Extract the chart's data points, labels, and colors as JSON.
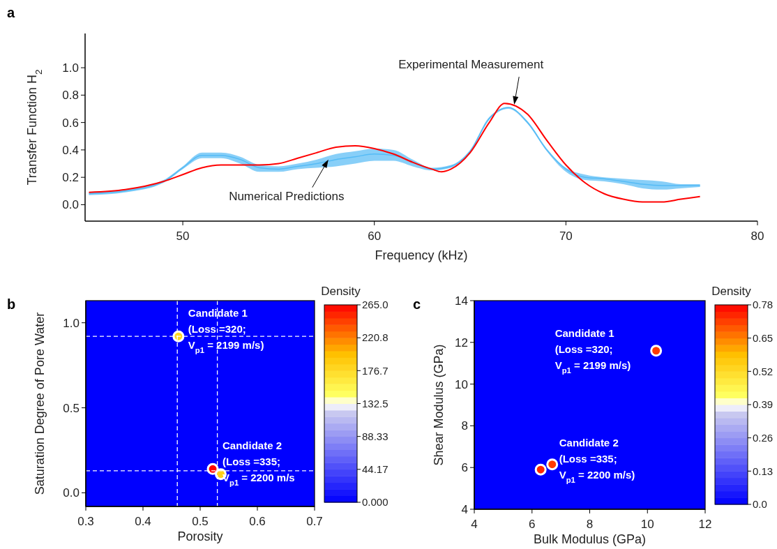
{
  "chart_data": [
    {
      "type": "line",
      "title": "a",
      "xlabel": "Frequency (kHz)",
      "ylabel": "Transfer Function H$_{2}$",
      "xlim": [
        44.9,
        80
      ],
      "xticks": [
        50,
        60,
        70,
        80
      ],
      "ylim": [
        -0.12,
        1.25
      ],
      "yticks": [
        {
          "value": 0,
          "label": "0.0"
        },
        {
          "value": 0.2,
          "label": "0.2"
        },
        {
          "value": 0.4,
          "label": "0.4"
        },
        {
          "value": 0.6,
          "label": "0.6"
        },
        {
          "value": 0.8,
          "label": "0.8"
        },
        {
          "value": 1,
          "label": "1.0"
        }
      ],
      "grid": false,
      "series": [
        {
          "color": "#55bbf5",
          "x": [
            45.1,
            47,
            49,
            50,
            51,
            52,
            53,
            54,
            55,
            56,
            57,
            58,
            59,
            60,
            61,
            62,
            63,
            64,
            65,
            66,
            67,
            68,
            69,
            70,
            71,
            72,
            73,
            74,
            75,
            76,
            77
          ],
          "values": [
            0.08,
            0.1,
            0.17,
            0.27,
            0.36,
            0.36,
            0.33,
            0.27,
            0.26,
            0.28,
            0.3,
            0.33,
            0.35,
            0.37,
            0.36,
            0.31,
            0.26,
            0.28,
            0.39,
            0.63,
            0.71,
            0.6,
            0.4,
            0.26,
            0.2,
            0.19,
            0.17,
            0.15,
            0.14,
            0.14,
            0.14
          ],
          "lower": [
            0.07,
            0.09,
            0.16,
            0.26,
            0.34,
            0.34,
            0.3,
            0.24,
            0.24,
            0.26,
            0.27,
            0.28,
            0.3,
            0.32,
            0.32,
            0.28,
            0.25,
            0.27,
            0.38,
            0.62,
            0.7,
            0.59,
            0.39,
            0.24,
            0.18,
            0.17,
            0.15,
            0.12,
            0.11,
            0.12,
            0.13
          ],
          "upper": [
            0.09,
            0.11,
            0.18,
            0.28,
            0.38,
            0.38,
            0.35,
            0.29,
            0.28,
            0.3,
            0.33,
            0.37,
            0.39,
            0.41,
            0.4,
            0.33,
            0.27,
            0.29,
            0.4,
            0.64,
            0.71,
            0.61,
            0.41,
            0.27,
            0.22,
            0.2,
            0.19,
            0.18,
            0.17,
            0.15,
            0.15
          ]
        },
        {
          "type": "line",
          "color": "#ff0000",
          "x": [
            45.1,
            47,
            49,
            50,
            51,
            52,
            54,
            55,
            56,
            57,
            58,
            59,
            60,
            61,
            62,
            63,
            63.5,
            64,
            65,
            66,
            66.8,
            68,
            69,
            70,
            71,
            72,
            73,
            74,
            75,
            76,
            77
          ],
          "values": [
            0.09,
            0.11,
            0.17,
            0.22,
            0.27,
            0.29,
            0.29,
            0.3,
            0.34,
            0.38,
            0.42,
            0.43,
            0.41,
            0.37,
            0.31,
            0.26,
            0.24,
            0.26,
            0.38,
            0.6,
            0.74,
            0.66,
            0.47,
            0.29,
            0.16,
            0.08,
            0.04,
            0.02,
            0.02,
            0.04,
            0.06
          ]
        }
      ],
      "annotations": [
        {
          "text": "Experimental Measurement",
          "x": 67.3,
          "y": 0.73
        },
        {
          "text": "Numerical Predictions",
          "x": 57.6,
          "y": 0.33
        }
      ]
    },
    {
      "type": "scatter",
      "title": "b",
      "xlabel": "Porosity",
      "ylabel": "Saturation Degree of Pore Water",
      "clabel": "Density",
      "xlim": [
        0.3,
        0.7
      ],
      "xticks": [
        0.3,
        0.4,
        0.5,
        0.6,
        0.7
      ],
      "ylim": [
        -0.08,
        1.13
      ],
      "yticks": [
        {
          "value": 0,
          "label": "0.0"
        },
        {
          "value": 0.5,
          "label": "0.5"
        },
        {
          "value": 1,
          "label": "1.0"
        }
      ],
      "clim": [
        0,
        265
      ],
      "cticks": [
        {
          "value": 0,
          "label": "0.000"
        },
        44.17,
        88.33,
        {
          "value": 132.5,
          "label": "132.5"
        },
        176.7,
        220.8,
        {
          "value": 265,
          "label": "265.0"
        }
      ],
      "grid": false,
      "marker": "circle",
      "series": [
        {
          "x": [
            0.462,
            0.522,
            0.536
          ],
          "values": [
            0.92,
            0.14,
            0.11
          ],
          "cvalues": [
            180,
            265,
            185
          ]
        }
      ],
      "ref_lines": [
        {
          "axis": "x",
          "value": 0.46,
          "color": "#ffffff",
          "line_style": "dashed"
        },
        {
          "axis": "x",
          "value": 0.53,
          "color": "#ffffff",
          "line_style": "dashed"
        },
        {
          "axis": "y",
          "value": 0.92,
          "color": "#ffffff",
          "line_style": "dashed"
        },
        {
          "axis": "y",
          "value": 0.13,
          "color": "#ffffff",
          "line_style": "dashed"
        }
      ],
      "annotations": [
        {
          "text": "Candidate 1\n(Loss =320;\nV$_{p1}$ = 2199 m/s)",
          "x": 0.462,
          "y": 0.92
        },
        {
          "text": "Candidate 2\n(Loss =335;\nV$_{p1}$ = 2200 m/s",
          "x": 0.522,
          "y": 0.14
        }
      ]
    },
    {
      "type": "scatter",
      "title": "c",
      "xlabel": "Bulk Modulus (GPa)",
      "ylabel": "Shear Modulus (GPa)",
      "clabel": "Density",
      "xlim": [
        4,
        12
      ],
      "xticks": [
        4,
        6,
        8,
        10,
        12
      ],
      "ylim": [
        4,
        14
      ],
      "yticks": [
        4,
        6,
        8,
        10,
        12,
        14
      ],
      "clim": [
        0,
        0.78
      ],
      "cticks": [
        {
          "value": 0,
          "label": "0.0"
        },
        0.13,
        0.26,
        0.39,
        0.52,
        0.65,
        0.78
      ],
      "grid": false,
      "marker": "circle",
      "series": [
        {
          "x": [
            10.3,
            6.3,
            6.7
          ],
          "values": [
            11.6,
            5.9,
            6.15
          ],
          "cvalues": [
            0.72,
            0.74,
            0.72
          ]
        }
      ],
      "annotations": [
        {
          "text": "Candidate 1\n(Loss =320;\nV$_{p1}$ = 2199 m/s)",
          "x": 10.3,
          "y": 11.6
        },
        {
          "text": "Candidate 2\n(Loss =335;\nV$_{p1}$ = 2200 m/s)",
          "x": 6.7,
          "y": 6.15
        }
      ]
    }
  ]
}
